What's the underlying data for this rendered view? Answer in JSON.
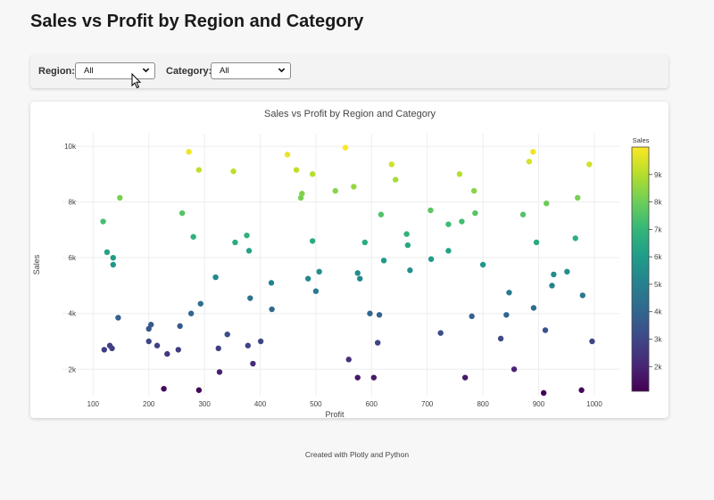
{
  "page": {
    "title": "Sales vs Profit by Region and Category",
    "footer": "Created with Plotly and Python"
  },
  "filters": {
    "region_label": "Region:",
    "region_value": "All",
    "category_label": "Category:",
    "category_value": "All"
  },
  "chart_data": {
    "type": "scatter",
    "title": "Sales vs Profit by Region and Category",
    "xlabel": "Profit",
    "ylabel": "Sales",
    "xlim": [
      45,
      1045
    ],
    "ylim": [
      1050,
      10450
    ],
    "x_ticks": [
      100,
      200,
      300,
      400,
      500,
      600,
      700,
      800,
      900,
      1000
    ],
    "x_tick_labels": [
      "100",
      "200",
      "300",
      "400",
      "500",
      "600",
      "700",
      "800",
      "900",
      "1000"
    ],
    "y_ticks": [
      2000,
      4000,
      6000,
      8000,
      10000
    ],
    "y_tick_labels": [
      "2k",
      "4k",
      "6k",
      "8k",
      "10k"
    ],
    "grid": true,
    "colorbar": {
      "title": "Sales",
      "range": [
        1100,
        10000
      ],
      "ticks": [
        2000,
        3000,
        4000,
        5000,
        6000,
        7000,
        8000,
        9000
      ],
      "tick_labels": [
        "2k",
        "3k",
        "4k",
        "5k",
        "6k",
        "7k",
        "8k",
        "9k"
      ],
      "colorscale": [
        "#440154",
        "#482878",
        "#3e4989",
        "#31688e",
        "#26828e",
        "#1f9e89",
        "#35b779",
        "#6ece58",
        "#b5de2b",
        "#fde725"
      ]
    },
    "points": [
      {
        "x": 118,
        "y": 7300
      },
      {
        "x": 125,
        "y": 6200
      },
      {
        "x": 136,
        "y": 6000
      },
      {
        "x": 136,
        "y": 5750
      },
      {
        "x": 148,
        "y": 8150
      },
      {
        "x": 145,
        "y": 3850
      },
      {
        "x": 120,
        "y": 2700
      },
      {
        "x": 130,
        "y": 2850
      },
      {
        "x": 134,
        "y": 2750
      },
      {
        "x": 200,
        "y": 3450
      },
      {
        "x": 204,
        "y": 3600
      },
      {
        "x": 200,
        "y": 3000
      },
      {
        "x": 215,
        "y": 2850
      },
      {
        "x": 233,
        "y": 2550
      },
      {
        "x": 227,
        "y": 1300
      },
      {
        "x": 253,
        "y": 2700
      },
      {
        "x": 256,
        "y": 3550
      },
      {
        "x": 260,
        "y": 7600
      },
      {
        "x": 280,
        "y": 6750
      },
      {
        "x": 276,
        "y": 4000
      },
      {
        "x": 293,
        "y": 4350
      },
      {
        "x": 290,
        "y": 9150
      },
      {
        "x": 272,
        "y": 9800
      },
      {
        "x": 290,
        "y": 1250
      },
      {
        "x": 320,
        "y": 5300
      },
      {
        "x": 325,
        "y": 2750
      },
      {
        "x": 327,
        "y": 1900
      },
      {
        "x": 341,
        "y": 3250
      },
      {
        "x": 352,
        "y": 9100
      },
      {
        "x": 355,
        "y": 6550
      },
      {
        "x": 376,
        "y": 6800
      },
      {
        "x": 380,
        "y": 6250
      },
      {
        "x": 382,
        "y": 4550
      },
      {
        "x": 378,
        "y": 2850
      },
      {
        "x": 387,
        "y": 2200
      },
      {
        "x": 401,
        "y": 3000
      },
      {
        "x": 421,
        "y": 4150
      },
      {
        "x": 420,
        "y": 5100
      },
      {
        "x": 449,
        "y": 9700
      },
      {
        "x": 465,
        "y": 9150
      },
      {
        "x": 473,
        "y": 8150
      },
      {
        "x": 475,
        "y": 8300
      },
      {
        "x": 494,
        "y": 9000
      },
      {
        "x": 494,
        "y": 6600
      },
      {
        "x": 486,
        "y": 5250
      },
      {
        "x": 500,
        "y": 4800
      },
      {
        "x": 506,
        "y": 5500
      },
      {
        "x": 535,
        "y": 8400
      },
      {
        "x": 553,
        "y": 9950
      },
      {
        "x": 568,
        "y": 8550
      },
      {
        "x": 575,
        "y": 5450
      },
      {
        "x": 579,
        "y": 5250
      },
      {
        "x": 588,
        "y": 6550
      },
      {
        "x": 559,
        "y": 2350
      },
      {
        "x": 575,
        "y": 1700
      },
      {
        "x": 597,
        "y": 4000
      },
      {
        "x": 604,
        "y": 1700
      },
      {
        "x": 611,
        "y": 2950
      },
      {
        "x": 614,
        "y": 3950
      },
      {
        "x": 617,
        "y": 7550
      },
      {
        "x": 622,
        "y": 5900
      },
      {
        "x": 636,
        "y": 9350
      },
      {
        "x": 643,
        "y": 8800
      },
      {
        "x": 663,
        "y": 6850
      },
      {
        "x": 665,
        "y": 6450
      },
      {
        "x": 669,
        "y": 5550
      },
      {
        "x": 706,
        "y": 7700
      },
      {
        "x": 707,
        "y": 5950
      },
      {
        "x": 724,
        "y": 3300
      },
      {
        "x": 738,
        "y": 7200
      },
      {
        "x": 738,
        "y": 6250
      },
      {
        "x": 758,
        "y": 9000
      },
      {
        "x": 762,
        "y": 7300
      },
      {
        "x": 768,
        "y": 1700
      },
      {
        "x": 780,
        "y": 3900
      },
      {
        "x": 784,
        "y": 8400
      },
      {
        "x": 786,
        "y": 7600
      },
      {
        "x": 800,
        "y": 5750
      },
      {
        "x": 832,
        "y": 3100
      },
      {
        "x": 842,
        "y": 3950
      },
      {
        "x": 847,
        "y": 4750
      },
      {
        "x": 856,
        "y": 2000
      },
      {
        "x": 872,
        "y": 7550
      },
      {
        "x": 883,
        "y": 9450
      },
      {
        "x": 890,
        "y": 9800
      },
      {
        "x": 891,
        "y": 4200
      },
      {
        "x": 896,
        "y": 6550
      },
      {
        "x": 912,
        "y": 3400
      },
      {
        "x": 914,
        "y": 7950
      },
      {
        "x": 924,
        "y": 5000
      },
      {
        "x": 927,
        "y": 5400
      },
      {
        "x": 951,
        "y": 5500
      },
      {
        "x": 909,
        "y": 1150
      },
      {
        "x": 966,
        "y": 6700
      },
      {
        "x": 970,
        "y": 8150
      },
      {
        "x": 977,
        "y": 1250
      },
      {
        "x": 979,
        "y": 4650
      },
      {
        "x": 991,
        "y": 9350
      },
      {
        "x": 996,
        "y": 3000
      }
    ]
  }
}
